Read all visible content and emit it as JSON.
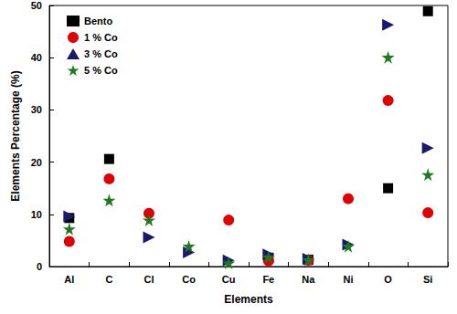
{
  "chart_data": {
    "type": "scatter",
    "x_label": "Elements",
    "y_label": "Elements Percentage (%)",
    "categories": [
      "Al",
      "C",
      "Cl",
      "Co",
      "Cu",
      "Fe",
      "Na",
      "Ni",
      "O",
      "Si"
    ],
    "ylim": [
      0,
      50
    ],
    "yticks": [
      0,
      10,
      20,
      30,
      40,
      50
    ],
    "grid": false,
    "legend": "upper left",
    "series": [
      {
        "name": "Bento",
        "color": "#000000",
        "marker": "square",
        "values": [
          9.3,
          20.6,
          null,
          null,
          null,
          1.7,
          1.3,
          null,
          15.0,
          48.9
        ]
      },
      {
        "name": "1 % Co",
        "color": "#e00000",
        "marker": "circle",
        "values": [
          4.8,
          16.8,
          10.2,
          null,
          8.9,
          1.1,
          1.2,
          13.0,
          31.8,
          10.3
        ]
      },
      {
        "name": "3 % Co",
        "color": "#191970",
        "marker": "triangle-right",
        "values": [
          9.6,
          null,
          5.6,
          2.7,
          1.2,
          2.3,
          1.5,
          4.2,
          46.3,
          22.7
        ]
      },
      {
        "name": "5 % Co",
        "color": "#1f7a1f",
        "marker": "star",
        "values": [
          7.2,
          12.7,
          8.9,
          3.9,
          0.7,
          1.8,
          1.3,
          3.9,
          40.1,
          17.6
        ]
      }
    ]
  }
}
